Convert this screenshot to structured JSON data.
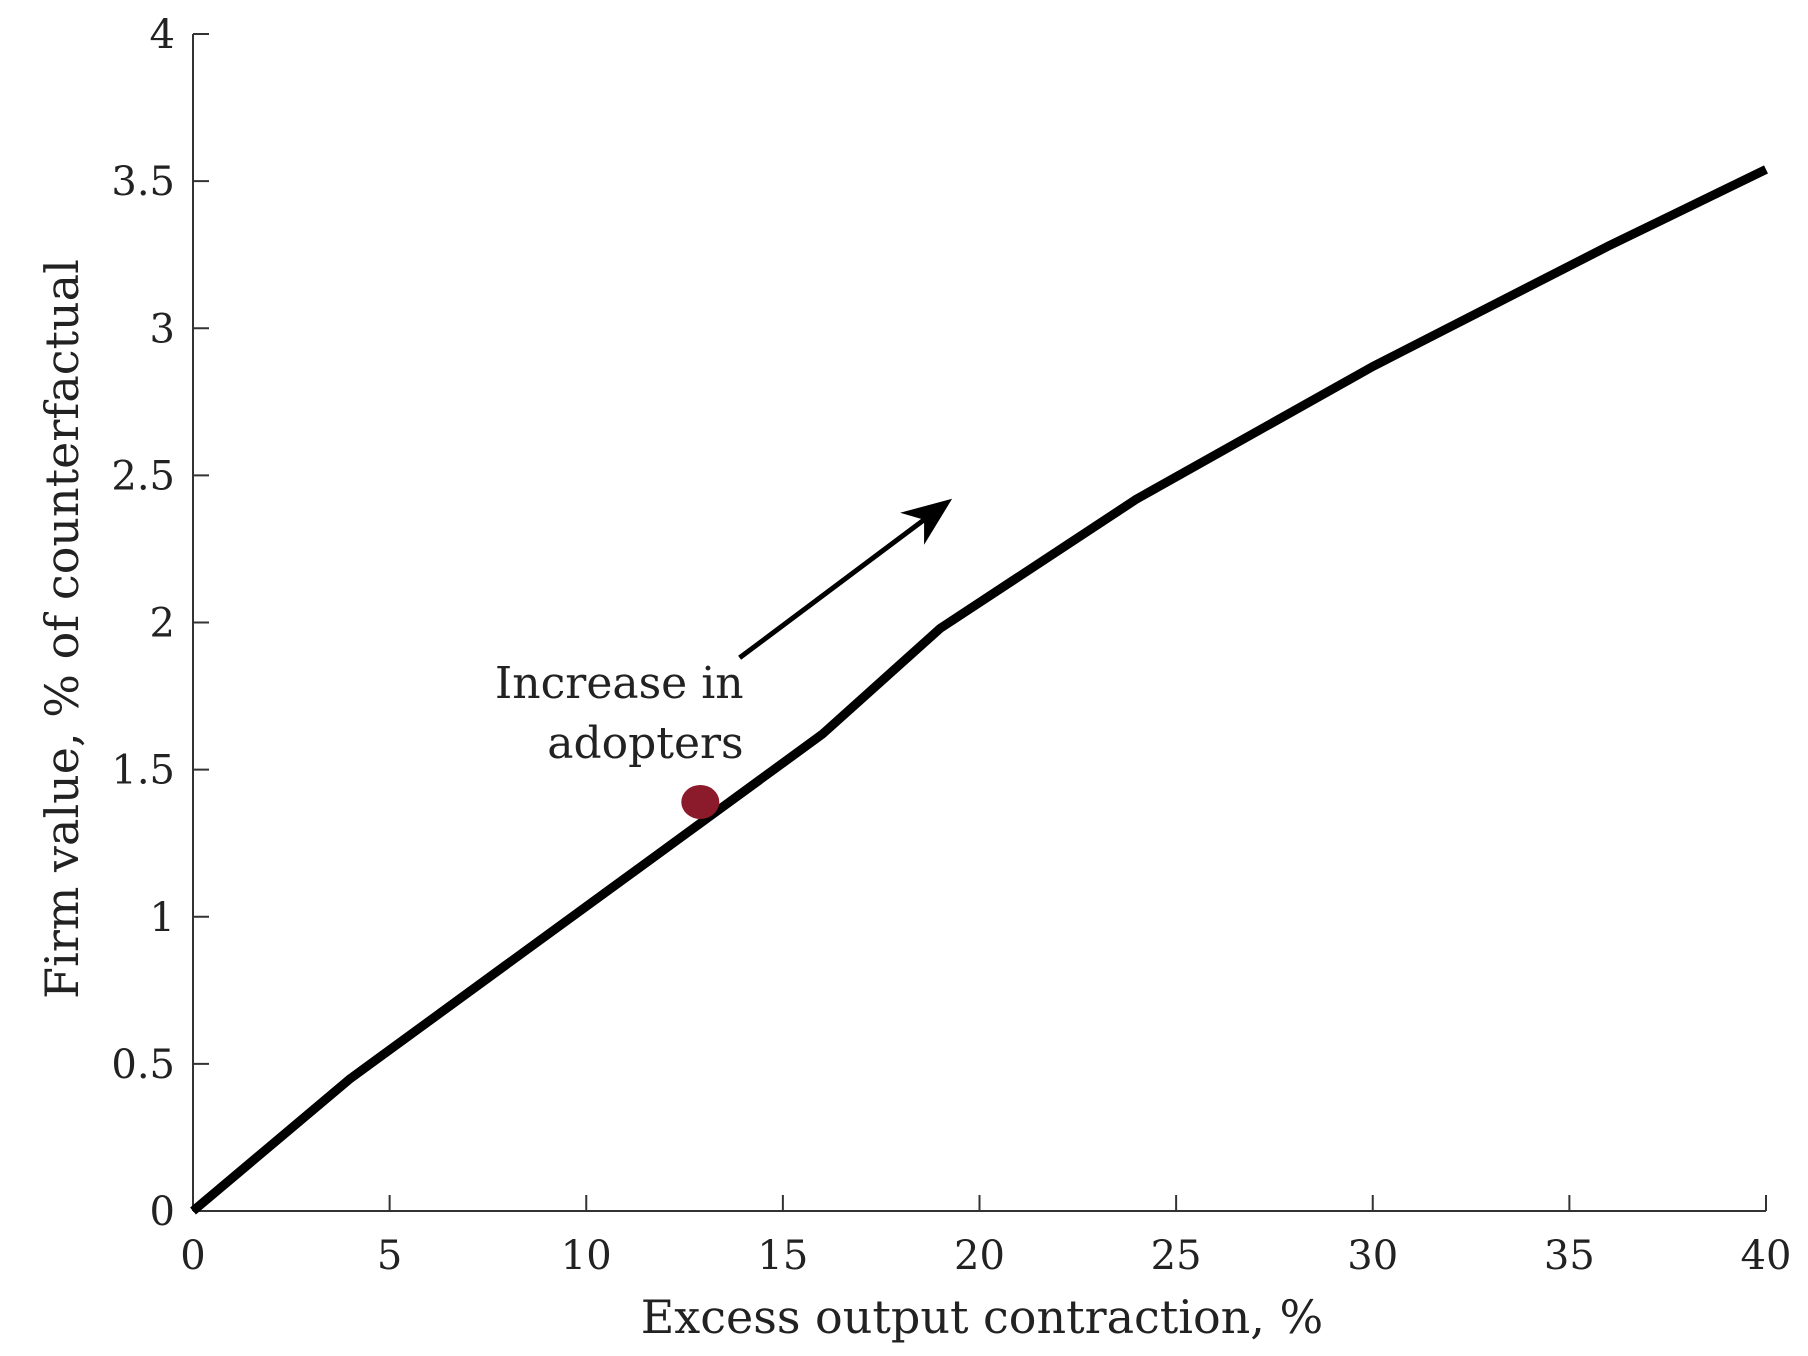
{
  "chart_data": {
    "type": "line",
    "title": "",
    "xlabel": "Excess output contraction, %",
    "ylabel": "Firm value, % of counterfactual",
    "xlim": [
      0,
      40
    ],
    "ylim": [
      0,
      4
    ],
    "grid": false,
    "x_ticks": [
      0,
      5,
      10,
      15,
      20,
      25,
      30,
      35,
      40
    ],
    "x_tick_labels": [
      "0",
      "5",
      "10",
      "15",
      "20",
      "25",
      "30",
      "35",
      "40"
    ],
    "y_ticks": [
      0,
      0.5,
      1,
      1.5,
      2,
      2.5,
      3,
      3.5,
      4
    ],
    "y_tick_labels": [
      "0",
      "0.5",
      "1",
      "1.5",
      "2",
      "2.5",
      "3",
      "3.5",
      "4"
    ],
    "series": [
      {
        "color": "#000000",
        "x": [
          0,
          4,
          8,
          12,
          16,
          19,
          24,
          30,
          36,
          40
        ],
        "y": [
          0,
          0.45,
          0.84,
          1.23,
          1.62,
          1.98,
          2.42,
          2.87,
          3.28,
          3.54
        ]
      }
    ],
    "highlight_point": {
      "x": 12.9,
      "y": 1.39,
      "color": "#8b1a2b"
    },
    "annotations": [
      {
        "text_lines": [
          "Increase in",
          "adopters"
        ],
        "arrow_from": [
          13.9,
          1.88
        ],
        "arrow_to": [
          19.1,
          2.4
        ]
      }
    ]
  }
}
